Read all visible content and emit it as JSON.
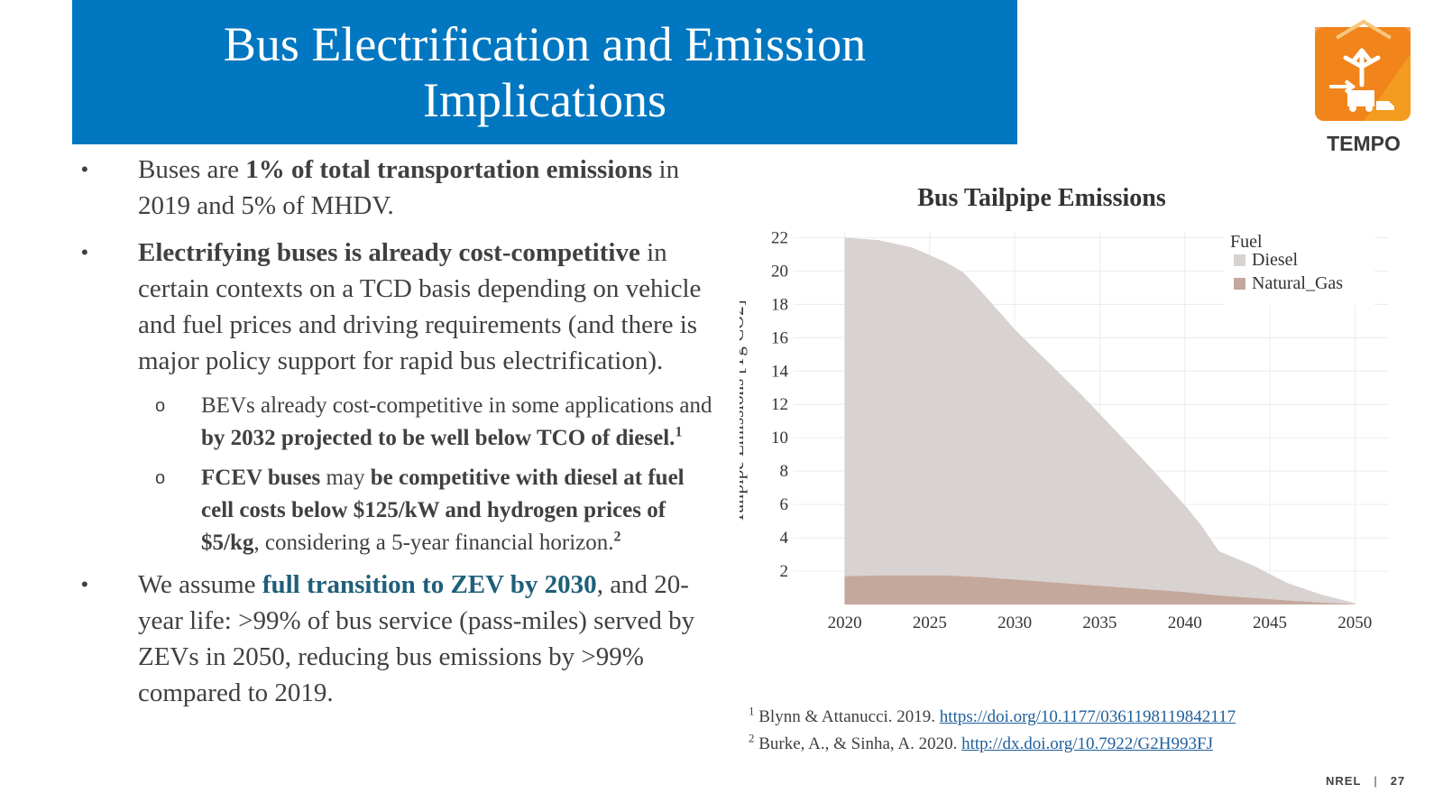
{
  "title": "Bus Electrification and Emission Implications",
  "logo": {
    "text": "TEMPO"
  },
  "bullets": {
    "b1": {
      "t1": "Buses are ",
      "bold1": "1% of total transportation emissions",
      "t2": " in 2019 and 5% of MHDV."
    },
    "b2": {
      "bold1": "Electrifying buses is already cost-competitive",
      "t1": " in certain contexts on a TCD basis depending on vehicle and fuel prices and driving requirements (and there is major policy support for rapid bus electrification)."
    },
    "b2a": {
      "t1": "BEVs already cost-competitive in some applications and ",
      "bold1": "by 2032 projected to be well below TCO of diesel.",
      "sup": "1"
    },
    "b2b": {
      "bold1": "FCEV buses",
      "t1": " may ",
      "bold2": "be competitive with diesel at fuel cell costs below $125/kW and hydrogen prices of $5/kg",
      "t2": ", considering a 5-year financial horizon.",
      "sup": "2"
    },
    "b3": {
      "t1": "We assume ",
      "bold1": "full transition to ZEV by 2030",
      "t2": ", and 20-year life: >99% of bus service (pass-miles) served by ZEVs in 2050, reducing bus emissions by >99% compared to 2019."
    }
  },
  "chart_data": {
    "type": "area",
    "title": "Bus Tailpipe Emissions",
    "xlabel": "",
    "ylabel": "Tailpipe Emissions [Tg CO2]",
    "xlim": [
      2017,
      2052
    ],
    "ylim": [
      0,
      22.4
    ],
    "x_ticks": [
      2020,
      2025,
      2030,
      2035,
      2040,
      2045,
      2050
    ],
    "y_ticks": [
      2,
      4,
      6,
      8,
      10,
      12,
      14,
      16,
      18,
      20,
      22
    ],
    "legend_title": "Fuel",
    "stacked": true,
    "x": [
      2020,
      2022,
      2024,
      2026,
      2027,
      2028,
      2030,
      2032,
      2034,
      2036,
      2038,
      2040,
      2041,
      2042,
      2044,
      2046,
      2048,
      2050
    ],
    "series": [
      {
        "name": "Natural_Gas",
        "color": "#c4a89c",
        "values": [
          1.7,
          1.75,
          1.75,
          1.75,
          1.7,
          1.65,
          1.5,
          1.35,
          1.2,
          1.05,
          0.9,
          0.75,
          0.65,
          0.55,
          0.4,
          0.25,
          0.12,
          0.03
        ]
      },
      {
        "name": "Diesel",
        "color": "#d8d2d0",
        "values": [
          20.3,
          20.1,
          19.65,
          18.75,
          18.2,
          17.15,
          15.0,
          13.15,
          11.3,
          9.3,
          7.3,
          5.2,
          4.05,
          2.65,
          1.95,
          1.05,
          0.48,
          0.05
        ]
      }
    ]
  },
  "footnotes": {
    "f1": {
      "sup": "1",
      "text": " Blynn & Attanucci. 2019. ",
      "link": "https://doi.org/10.1177/0361198119842117"
    },
    "f2": {
      "sup": "2",
      "text": " Burke, A., & Sinha, A. 2020. ",
      "link": "http://dx.doi.org/10.7922/G2H993FJ"
    }
  },
  "footer": {
    "org": "NREL",
    "sep": "|",
    "page": "27"
  },
  "colors": {
    "title_bg": "#0077c0",
    "teal": "#1f5f7a",
    "link": "#1f5f9a"
  }
}
